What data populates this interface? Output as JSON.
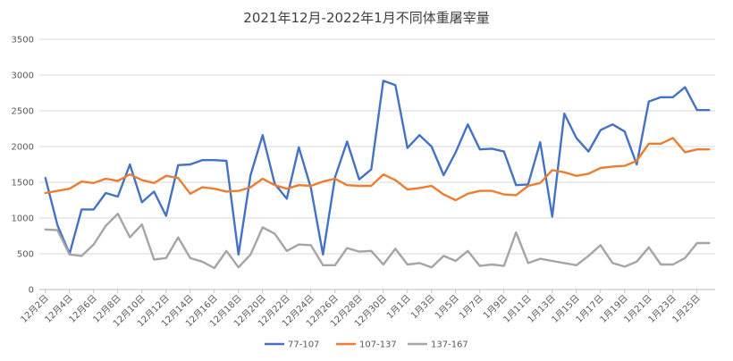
{
  "chart_data": {
    "type": "line",
    "title": "2021年12月-2022年1月不同体重屠宰量",
    "xlabel": "",
    "ylabel": "",
    "ylim": [
      0,
      3500
    ],
    "yticks": [
      0,
      500,
      1000,
      1500,
      2000,
      2500,
      3000,
      3500
    ],
    "grid": "horizontal",
    "legend_position": "bottom",
    "x": [
      "12月2日",
      "12月3日",
      "12月4日",
      "12月5日",
      "12月6日",
      "12月7日",
      "12月8日",
      "12月9日",
      "12月10日",
      "12月11日",
      "12月12日",
      "12月13日",
      "12月14日",
      "12月15日",
      "12月16日",
      "12月17日",
      "12月18日",
      "12月19日",
      "12月20日",
      "12月21日",
      "12月22日",
      "12月23日",
      "12月24日",
      "12月25日",
      "12月26日",
      "12月27日",
      "12月28日",
      "12月29日",
      "12月30日",
      "12月31日",
      "1月1日",
      "1月2日",
      "1月3日",
      "1月4日",
      "1月5日",
      "1月6日",
      "1月7日",
      "1月8日",
      "1月9日",
      "1月10日",
      "1月11日",
      "1月12日",
      "1月13日",
      "1月14日",
      "1月15日",
      "1月16日",
      "1月17日",
      "1月18日",
      "1月19日",
      "1月20日",
      "1月21日",
      "1月22日",
      "1月23日",
      "1月24日",
      "1月25日",
      "1月26日"
    ],
    "x_tick_labels": [
      "12月2日",
      "12月4日",
      "12月6日",
      "12月8日",
      "12月10日",
      "12月12日",
      "12月14日",
      "12月16日",
      "12月18日",
      "12月20日",
      "12月22日",
      "12月24日",
      "12月26日",
      "12月28日",
      "12月30日",
      "1月1日",
      "1月3日",
      "1月5日",
      "1月7日",
      "1月9日",
      "1月11日",
      "1月13日",
      "1月15日",
      "1月17日",
      "1月19日",
      "1月21日",
      "1月23日",
      "1月25日"
    ],
    "series": [
      {
        "name": "77-107",
        "color": "#4472C4",
        "values": [
          1560,
          900,
          500,
          1120,
          1120,
          1350,
          1300,
          1750,
          1220,
          1370,
          1030,
          1740,
          1750,
          1810,
          1810,
          1800,
          490,
          1600,
          2160,
          1480,
          1270,
          1990,
          1420,
          490,
          1570,
          2070,
          1540,
          1680,
          2920,
          2860,
          1980,
          2160,
          2000,
          1600,
          1920,
          2310,
          1960,
          1970,
          1930,
          1460,
          1470,
          2060,
          1020,
          2460,
          2120,
          1930,
          2230,
          2310,
          2210,
          1750,
          2630,
          2690,
          2690,
          2830,
          2510,
          2510
        ]
      },
      {
        "name": "107-137",
        "color": "#ED7D31",
        "values": [
          1350,
          1380,
          1410,
          1510,
          1490,
          1550,
          1520,
          1610,
          1530,
          1490,
          1590,
          1560,
          1340,
          1430,
          1410,
          1370,
          1380,
          1430,
          1550,
          1460,
          1410,
          1460,
          1450,
          1510,
          1550,
          1460,
          1450,
          1450,
          1610,
          1530,
          1400,
          1420,
          1450,
          1330,
          1250,
          1340,
          1380,
          1380,
          1330,
          1320,
          1450,
          1490,
          1670,
          1640,
          1590,
          1620,
          1700,
          1720,
          1730,
          1800,
          2040,
          2040,
          2120,
          1920,
          1960,
          1960
        ]
      },
      {
        "name": "137-167",
        "color": "#A5A5A5",
        "values": [
          840,
          830,
          490,
          470,
          630,
          890,
          1060,
          730,
          910,
          420,
          440,
          730,
          440,
          390,
          300,
          540,
          310,
          490,
          870,
          780,
          540,
          630,
          620,
          340,
          340,
          580,
          530,
          540,
          350,
          570,
          350,
          370,
          310,
          470,
          400,
          540,
          330,
          350,
          330,
          800,
          370,
          430,
          400,
          370,
          340,
          470,
          620,
          370,
          320,
          390,
          590,
          350,
          350,
          440,
          650,
          650
        ]
      }
    ]
  }
}
